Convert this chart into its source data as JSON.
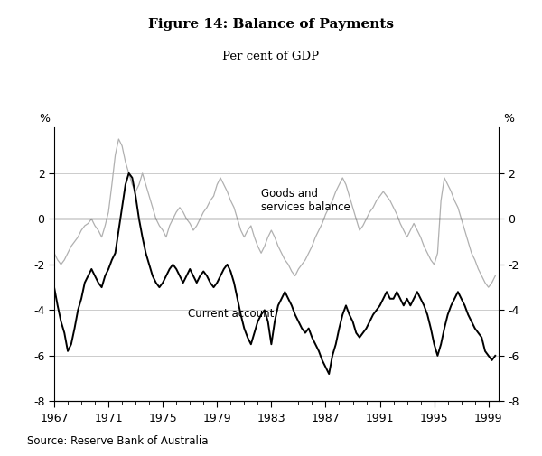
{
  "title": "Figure 14: Balance of Payments",
  "subtitle": "Per cent of GDP",
  "source": "Source: Reserve Bank of Australia",
  "xlim": [
    1967,
    1999.75
  ],
  "ylim": [
    -8,
    4
  ],
  "yticks": [
    -8,
    -6,
    -4,
    -2,
    0,
    2
  ],
  "xticks": [
    1967,
    1971,
    1975,
    1979,
    1983,
    1987,
    1991,
    1995,
    1999
  ],
  "ylabel_left": "%",
  "ylabel_right": "%",
  "line_ca_color": "#000000",
  "line_gs_color": "#b0b0b0",
  "grid_color": "#cccccc",
  "zero_line_color": "#333333",
  "background_color": "#ffffff",
  "ca_label": "Current account",
  "gs_label": "Goods and\nservices balance",
  "ca_data": [
    [
      1967.0,
      -3.0
    ],
    [
      1967.25,
      -3.8
    ],
    [
      1967.5,
      -4.5
    ],
    [
      1967.75,
      -5.0
    ],
    [
      1968.0,
      -5.8
    ],
    [
      1968.25,
      -5.5
    ],
    [
      1968.5,
      -4.8
    ],
    [
      1968.75,
      -4.0
    ],
    [
      1969.0,
      -3.5
    ],
    [
      1969.25,
      -2.8
    ],
    [
      1969.5,
      -2.5
    ],
    [
      1969.75,
      -2.2
    ],
    [
      1970.0,
      -2.5
    ],
    [
      1970.25,
      -2.8
    ],
    [
      1970.5,
      -3.0
    ],
    [
      1970.75,
      -2.5
    ],
    [
      1971.0,
      -2.2
    ],
    [
      1971.25,
      -1.8
    ],
    [
      1971.5,
      -1.5
    ],
    [
      1971.75,
      -0.5
    ],
    [
      1972.0,
      0.5
    ],
    [
      1972.25,
      1.5
    ],
    [
      1972.5,
      2.0
    ],
    [
      1972.75,
      1.8
    ],
    [
      1973.0,
      1.0
    ],
    [
      1973.25,
      0.0
    ],
    [
      1973.5,
      -0.8
    ],
    [
      1973.75,
      -1.5
    ],
    [
      1974.0,
      -2.0
    ],
    [
      1974.25,
      -2.5
    ],
    [
      1974.5,
      -2.8
    ],
    [
      1974.75,
      -3.0
    ],
    [
      1975.0,
      -2.8
    ],
    [
      1975.25,
      -2.5
    ],
    [
      1975.5,
      -2.2
    ],
    [
      1975.75,
      -2.0
    ],
    [
      1976.0,
      -2.2
    ],
    [
      1976.25,
      -2.5
    ],
    [
      1976.5,
      -2.8
    ],
    [
      1976.75,
      -2.5
    ],
    [
      1977.0,
      -2.2
    ],
    [
      1977.25,
      -2.5
    ],
    [
      1977.5,
      -2.8
    ],
    [
      1977.75,
      -2.5
    ],
    [
      1978.0,
      -2.3
    ],
    [
      1978.25,
      -2.5
    ],
    [
      1978.5,
      -2.8
    ],
    [
      1978.75,
      -3.0
    ],
    [
      1979.0,
      -2.8
    ],
    [
      1979.25,
      -2.5
    ],
    [
      1979.5,
      -2.2
    ],
    [
      1979.75,
      -2.0
    ],
    [
      1980.0,
      -2.3
    ],
    [
      1980.25,
      -2.8
    ],
    [
      1980.5,
      -3.5
    ],
    [
      1980.75,
      -4.2
    ],
    [
      1981.0,
      -4.8
    ],
    [
      1981.25,
      -5.2
    ],
    [
      1981.5,
      -5.5
    ],
    [
      1981.75,
      -5.0
    ],
    [
      1982.0,
      -4.5
    ],
    [
      1982.25,
      -4.2
    ],
    [
      1982.5,
      -4.0
    ],
    [
      1982.75,
      -4.5
    ],
    [
      1983.0,
      -5.5
    ],
    [
      1983.25,
      -4.5
    ],
    [
      1983.5,
      -3.8
    ],
    [
      1983.75,
      -3.5
    ],
    [
      1984.0,
      -3.2
    ],
    [
      1984.25,
      -3.5
    ],
    [
      1984.5,
      -3.8
    ],
    [
      1984.75,
      -4.2
    ],
    [
      1985.0,
      -4.5
    ],
    [
      1985.25,
      -4.8
    ],
    [
      1985.5,
      -5.0
    ],
    [
      1985.75,
      -4.8
    ],
    [
      1986.0,
      -5.2
    ],
    [
      1986.25,
      -5.5
    ],
    [
      1986.5,
      -5.8
    ],
    [
      1986.75,
      -6.2
    ],
    [
      1987.0,
      -6.5
    ],
    [
      1987.25,
      -6.8
    ],
    [
      1987.5,
      -6.0
    ],
    [
      1987.75,
      -5.5
    ],
    [
      1988.0,
      -4.8
    ],
    [
      1988.25,
      -4.2
    ],
    [
      1988.5,
      -3.8
    ],
    [
      1988.75,
      -4.2
    ],
    [
      1989.0,
      -4.5
    ],
    [
      1989.25,
      -5.0
    ],
    [
      1989.5,
      -5.2
    ],
    [
      1989.75,
      -5.0
    ],
    [
      1990.0,
      -4.8
    ],
    [
      1990.25,
      -4.5
    ],
    [
      1990.5,
      -4.2
    ],
    [
      1990.75,
      -4.0
    ],
    [
      1991.0,
      -3.8
    ],
    [
      1991.25,
      -3.5
    ],
    [
      1991.5,
      -3.2
    ],
    [
      1991.75,
      -3.5
    ],
    [
      1992.0,
      -3.5
    ],
    [
      1992.25,
      -3.2
    ],
    [
      1992.5,
      -3.5
    ],
    [
      1992.75,
      -3.8
    ],
    [
      1993.0,
      -3.5
    ],
    [
      1993.25,
      -3.8
    ],
    [
      1993.5,
      -3.5
    ],
    [
      1993.75,
      -3.2
    ],
    [
      1994.0,
      -3.5
    ],
    [
      1994.25,
      -3.8
    ],
    [
      1994.5,
      -4.2
    ],
    [
      1994.75,
      -4.8
    ],
    [
      1995.0,
      -5.5
    ],
    [
      1995.25,
      -6.0
    ],
    [
      1995.5,
      -5.5
    ],
    [
      1995.75,
      -4.8
    ],
    [
      1996.0,
      -4.2
    ],
    [
      1996.25,
      -3.8
    ],
    [
      1996.5,
      -3.5
    ],
    [
      1996.75,
      -3.2
    ],
    [
      1997.0,
      -3.5
    ],
    [
      1997.25,
      -3.8
    ],
    [
      1997.5,
      -4.2
    ],
    [
      1997.75,
      -4.5
    ],
    [
      1998.0,
      -4.8
    ],
    [
      1998.25,
      -5.0
    ],
    [
      1998.5,
      -5.2
    ],
    [
      1998.75,
      -5.8
    ],
    [
      1999.0,
      -6.0
    ],
    [
      1999.25,
      -6.2
    ],
    [
      1999.5,
      -6.0
    ]
  ],
  "gs_data": [
    [
      1967.0,
      -1.5
    ],
    [
      1967.25,
      -1.8
    ],
    [
      1967.5,
      -2.0
    ],
    [
      1967.75,
      -1.8
    ],
    [
      1968.0,
      -1.5
    ],
    [
      1968.25,
      -1.2
    ],
    [
      1968.5,
      -1.0
    ],
    [
      1968.75,
      -0.8
    ],
    [
      1969.0,
      -0.5
    ],
    [
      1969.25,
      -0.3
    ],
    [
      1969.5,
      -0.2
    ],
    [
      1969.75,
      0.0
    ],
    [
      1970.0,
      -0.3
    ],
    [
      1970.25,
      -0.5
    ],
    [
      1970.5,
      -0.8
    ],
    [
      1970.75,
      -0.3
    ],
    [
      1971.0,
      0.3
    ],
    [
      1971.25,
      1.5
    ],
    [
      1971.5,
      2.8
    ],
    [
      1971.75,
      3.5
    ],
    [
      1972.0,
      3.2
    ],
    [
      1972.25,
      2.5
    ],
    [
      1972.5,
      2.0
    ],
    [
      1972.75,
      1.5
    ],
    [
      1973.0,
      1.2
    ],
    [
      1973.25,
      1.5
    ],
    [
      1973.5,
      2.0
    ],
    [
      1973.75,
      1.5
    ],
    [
      1974.0,
      1.0
    ],
    [
      1974.25,
      0.5
    ],
    [
      1974.5,
      0.0
    ],
    [
      1974.75,
      -0.3
    ],
    [
      1975.0,
      -0.5
    ],
    [
      1975.25,
      -0.8
    ],
    [
      1975.5,
      -0.3
    ],
    [
      1975.75,
      0.0
    ],
    [
      1976.0,
      0.3
    ],
    [
      1976.25,
      0.5
    ],
    [
      1976.5,
      0.3
    ],
    [
      1976.75,
      0.0
    ],
    [
      1977.0,
      -0.2
    ],
    [
      1977.25,
      -0.5
    ],
    [
      1977.5,
      -0.3
    ],
    [
      1977.75,
      0.0
    ],
    [
      1978.0,
      0.3
    ],
    [
      1978.25,
      0.5
    ],
    [
      1978.5,
      0.8
    ],
    [
      1978.75,
      1.0
    ],
    [
      1979.0,
      1.5
    ],
    [
      1979.25,
      1.8
    ],
    [
      1979.5,
      1.5
    ],
    [
      1979.75,
      1.2
    ],
    [
      1980.0,
      0.8
    ],
    [
      1980.25,
      0.5
    ],
    [
      1980.5,
      0.0
    ],
    [
      1980.75,
      -0.5
    ],
    [
      1981.0,
      -0.8
    ],
    [
      1981.25,
      -0.5
    ],
    [
      1981.5,
      -0.3
    ],
    [
      1981.75,
      -0.8
    ],
    [
      1982.0,
      -1.2
    ],
    [
      1982.25,
      -1.5
    ],
    [
      1982.5,
      -1.2
    ],
    [
      1982.75,
      -0.8
    ],
    [
      1983.0,
      -0.5
    ],
    [
      1983.25,
      -0.8
    ],
    [
      1983.5,
      -1.2
    ],
    [
      1983.75,
      -1.5
    ],
    [
      1984.0,
      -1.8
    ],
    [
      1984.25,
      -2.0
    ],
    [
      1984.5,
      -2.3
    ],
    [
      1984.75,
      -2.5
    ],
    [
      1985.0,
      -2.2
    ],
    [
      1985.25,
      -2.0
    ],
    [
      1985.5,
      -1.8
    ],
    [
      1985.75,
      -1.5
    ],
    [
      1986.0,
      -1.2
    ],
    [
      1986.25,
      -0.8
    ],
    [
      1986.5,
      -0.5
    ],
    [
      1986.75,
      -0.2
    ],
    [
      1987.0,
      0.2
    ],
    [
      1987.25,
      0.5
    ],
    [
      1987.5,
      0.8
    ],
    [
      1987.75,
      1.2
    ],
    [
      1988.0,
      1.5
    ],
    [
      1988.25,
      1.8
    ],
    [
      1988.5,
      1.5
    ],
    [
      1988.75,
      1.0
    ],
    [
      1989.0,
      0.5
    ],
    [
      1989.25,
      0.0
    ],
    [
      1989.5,
      -0.5
    ],
    [
      1989.75,
      -0.3
    ],
    [
      1990.0,
      0.0
    ],
    [
      1990.25,
      0.3
    ],
    [
      1990.5,
      0.5
    ],
    [
      1990.75,
      0.8
    ],
    [
      1991.0,
      1.0
    ],
    [
      1991.25,
      1.2
    ],
    [
      1991.5,
      1.0
    ],
    [
      1991.75,
      0.8
    ],
    [
      1992.0,
      0.5
    ],
    [
      1992.25,
      0.2
    ],
    [
      1992.5,
      -0.2
    ],
    [
      1992.75,
      -0.5
    ],
    [
      1993.0,
      -0.8
    ],
    [
      1993.25,
      -0.5
    ],
    [
      1993.5,
      -0.2
    ],
    [
      1993.75,
      -0.5
    ],
    [
      1994.0,
      -0.8
    ],
    [
      1994.25,
      -1.2
    ],
    [
      1994.5,
      -1.5
    ],
    [
      1994.75,
      -1.8
    ],
    [
      1995.0,
      -2.0
    ],
    [
      1995.25,
      -1.5
    ],
    [
      1995.5,
      0.8
    ],
    [
      1995.75,
      1.8
    ],
    [
      1996.0,
      1.5
    ],
    [
      1996.25,
      1.2
    ],
    [
      1996.5,
      0.8
    ],
    [
      1996.75,
      0.5
    ],
    [
      1997.0,
      0.0
    ],
    [
      1997.25,
      -0.5
    ],
    [
      1997.5,
      -1.0
    ],
    [
      1997.75,
      -1.5
    ],
    [
      1998.0,
      -1.8
    ],
    [
      1998.25,
      -2.2
    ],
    [
      1998.5,
      -2.5
    ],
    [
      1998.75,
      -2.8
    ],
    [
      1999.0,
      -3.0
    ],
    [
      1999.25,
      -2.8
    ],
    [
      1999.5,
      -2.5
    ]
  ]
}
